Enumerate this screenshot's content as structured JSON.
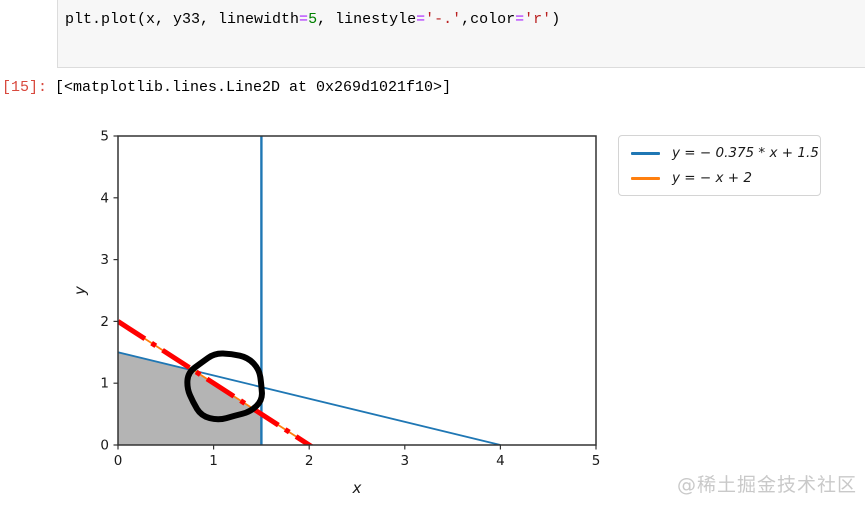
{
  "code_cell": {
    "tokens": [
      {
        "text": "plt.plot(x, y33, linewidth",
        "type": "plain"
      },
      {
        "text": "=",
        "type": "operator"
      },
      {
        "text": "5",
        "type": "number"
      },
      {
        "text": ", linestyle",
        "type": "plain"
      },
      {
        "text": "=",
        "type": "operator"
      },
      {
        "text": "'-.'",
        "type": "string"
      },
      {
        "text": ",color",
        "type": "plain"
      },
      {
        "text": "=",
        "type": "operator"
      },
      {
        "text": "'r'",
        "type": "string"
      },
      {
        "text": ")",
        "type": "plain"
      }
    ]
  },
  "output": {
    "prompt": "[15]:",
    "text": "[<matplotlib.lines.Line2D at 0x269d1021f10>]"
  },
  "watermark": "@稀土掘金技术社区",
  "chart_data": {
    "type": "line",
    "title": "",
    "xlabel": "x",
    "ylabel": "y",
    "xlim": [
      0,
      5
    ],
    "ylim": [
      0,
      5
    ],
    "xticks": [
      0,
      1,
      2,
      3,
      4,
      5
    ],
    "yticks": [
      0,
      1,
      2,
      3,
      4,
      5
    ],
    "grid": false,
    "colors": {
      "blue": "#1f77b4",
      "orange": "#ff7f0e",
      "red": "#ff0000",
      "region_gray": "#b4b4b4",
      "spine": "#333333",
      "annotation": "#000000"
    },
    "series": [
      {
        "name": "y = − 0.375 * x + 1.5",
        "color": "#1f77b4",
        "width": 1.8,
        "style": "solid",
        "points": [
          [
            0,
            1.5
          ],
          [
            4,
            0
          ]
        ],
        "in_legend": true
      },
      {
        "name": "y = − x + 2",
        "color": "#ff7f0e",
        "width": 1.8,
        "style": "solid",
        "points": [
          [
            0,
            2
          ],
          [
            2.05,
            -0.05
          ]
        ],
        "in_legend": true
      },
      {
        "name": "vertical line x = 1.5",
        "color": "#1f77b4",
        "width": 2.4,
        "style": "solid",
        "points": [
          [
            1.5,
            0
          ],
          [
            1.5,
            5
          ]
        ],
        "in_legend": false
      },
      {
        "name": "y33 thick red dash-dot (linewidth=5, linestyle='-.', color='r')",
        "color": "#ff0000",
        "width": 5,
        "style": "dashdot",
        "points": [
          [
            0,
            2
          ],
          [
            2.05,
            -0.05
          ]
        ],
        "in_legend": false
      }
    ],
    "shaded_region": {
      "color": "#b4b4b4",
      "vertices": [
        [
          0,
          0
        ],
        [
          0,
          1.5
        ],
        [
          0.8,
          1.2
        ],
        [
          1.5,
          0.5
        ],
        [
          1.5,
          0
        ]
      ]
    },
    "annotation_circle": {
      "center": [
        1.12,
        0.95
      ],
      "rx": 0.4,
      "ry": 0.55,
      "color": "#000000",
      "stroke_width": 6
    },
    "legend": {
      "position": "outside-upper-right",
      "entries": [
        {
          "label": "y = − 0.375 * x + 1.5",
          "color": "#1f77b4"
        },
        {
          "label": "y = − x + 2",
          "color": "#ff7f0e"
        }
      ]
    }
  }
}
